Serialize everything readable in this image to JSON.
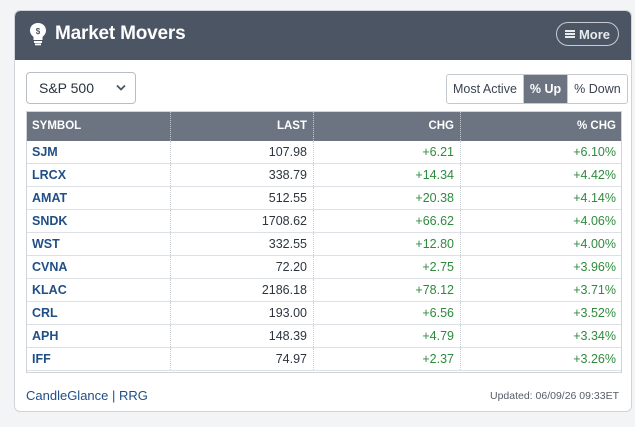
{
  "header": {
    "title": "Market Movers",
    "more_label": "More"
  },
  "controls": {
    "index_select": "S&P 500",
    "segments": [
      "Most Active",
      "% Up",
      "% Down"
    ],
    "active_segment": "% Up"
  },
  "table": {
    "columns": [
      "SYMBOL",
      "LAST",
      "CHG",
      "% CHG"
    ],
    "rows": [
      {
        "symbol": "SJM",
        "last": "107.98",
        "chg": "+6.21",
        "pct": "+6.10%"
      },
      {
        "symbol": "LRCX",
        "last": "338.79",
        "chg": "+14.34",
        "pct": "+4.42%"
      },
      {
        "symbol": "AMAT",
        "last": "512.55",
        "chg": "+20.38",
        "pct": "+4.14%"
      },
      {
        "symbol": "SNDK",
        "last": "1708.62",
        "chg": "+66.62",
        "pct": "+4.06%"
      },
      {
        "symbol": "WST",
        "last": "332.55",
        "chg": "+12.80",
        "pct": "+4.00%"
      },
      {
        "symbol": "CVNA",
        "last": "72.20",
        "chg": "+2.75",
        "pct": "+3.96%"
      },
      {
        "symbol": "KLAC",
        "last": "2186.18",
        "chg": "+78.12",
        "pct": "+3.71%"
      },
      {
        "symbol": "CRL",
        "last": "193.00",
        "chg": "+6.56",
        "pct": "+3.52%"
      },
      {
        "symbol": "APH",
        "last": "148.39",
        "chg": "+4.79",
        "pct": "+3.34%"
      },
      {
        "symbol": "IFF",
        "last": "74.97",
        "chg": "+2.37",
        "pct": "+3.26%"
      }
    ]
  },
  "footer": {
    "link1": "CandleGlance",
    "separator": "|",
    "link2": "RRG",
    "updated": "Updated: 06/09/26 09:33ET"
  },
  "colors": {
    "header_bg": "#4b5563",
    "positive": "#2e8b3d",
    "symbol_link": "#1f4f86",
    "active_tab": "#6b7480"
  },
  "icons": [
    "lightbulb-icon",
    "hamburger-icon",
    "chevron-down-icon"
  ]
}
